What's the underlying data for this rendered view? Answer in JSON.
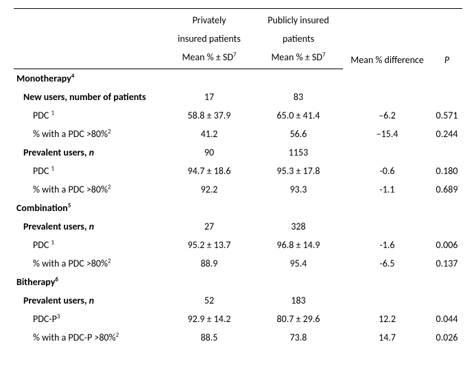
{
  "header": {
    "private": {
      "line1": "Privately",
      "line2": "insured patients",
      "line3a": "Mean % ± SD",
      "line3sup": "7"
    },
    "public": {
      "line1": "Publicly insured",
      "line2": "patients",
      "line3a": "Mean % ± SD",
      "line3sup": "7"
    },
    "diff": "Mean % difference",
    "p": "P"
  },
  "sections": {
    "mono": {
      "title": "Monotherapy",
      "sup": "4"
    },
    "combo": {
      "title": "Combination",
      "sup": "5"
    },
    "bith": {
      "title": "Bitherapy",
      "sup": "6"
    }
  },
  "labels": {
    "new_users": "New users, number of patients",
    "prev_users_a": "Prevalent users, ",
    "prev_users_n": "n",
    "pdc": "PDC ",
    "pdc_sup": "1",
    "pdcp": "PDC-P",
    "pdcp_sup": "3",
    "pct_pdc_a": "% with a PDC >80%",
    "pct_sup": "2",
    "pct_pdcp_a": "% with a PDC-P >80%"
  },
  "data": {
    "mono_new_n": {
      "priv": "17",
      "pub": "83",
      "diff": "",
      "p": ""
    },
    "mono_new_pdc": {
      "priv": "58.8 ± 37.9",
      "pub": "65.0 ± 41.4",
      "diff": "–6.2",
      "p": "0.571"
    },
    "mono_new_pct": {
      "priv": "41.2",
      "pub": "56.6",
      "diff": "–15.4",
      "p": "0.244"
    },
    "mono_prev_n": {
      "priv": "90",
      "pub": "1153",
      "diff": "",
      "p": ""
    },
    "mono_prev_pdc": {
      "priv": "94.7 ± 18.6",
      "pub": "95.3 ± 17.8",
      "diff": "-0.6",
      "p": "0.180"
    },
    "mono_prev_pct": {
      "priv": "92.2",
      "pub": "93.3",
      "diff": "-1.1",
      "p": "0.689"
    },
    "combo_prev_n": {
      "priv": "27",
      "pub": "328",
      "diff": "",
      "p": ""
    },
    "combo_prev_pdc": {
      "priv": "95.2 ± 13.7",
      "pub": "96.8 ± 14.9",
      "diff": "-1.6",
      "p": "0.006"
    },
    "combo_prev_pct": {
      "priv": "88.9",
      "pub": "95.4",
      "diff": "-6.5",
      "p": "0.137"
    },
    "bith_prev_n": {
      "priv": "52",
      "pub": "183",
      "diff": "",
      "p": ""
    },
    "bith_prev_pdcp": {
      "priv": "92.9 ± 14.2",
      "pub": "80.7 ± 29.6",
      "diff": "12.2",
      "p": "0.044"
    },
    "bith_prev_pct": {
      "priv": "88.5",
      "pub": "73.8",
      "diff": "14.7",
      "p": "0.026"
    }
  }
}
